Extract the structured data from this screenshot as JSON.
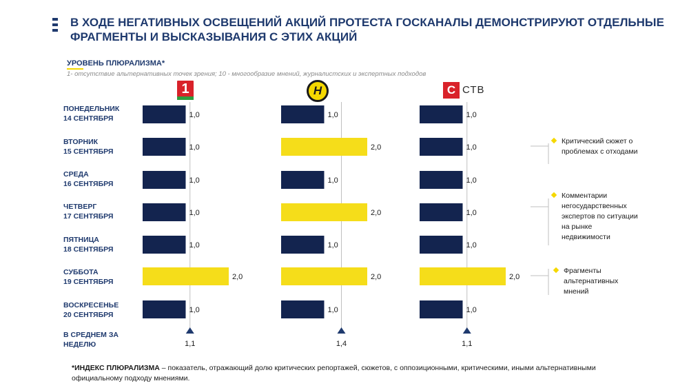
{
  "header": {
    "title": "В ХОДЕ НЕГАТИВНЫХ ОСВЕЩЕНИЙ АКЦИЙ ПРОТЕСТА ГОСКАНАЛЫ ДЕМОНСТРИРУЮТ ОТДЕЛЬНЫЕ ФРАГМЕНТЫ И ВЫСКАЗЫВАНИЯ С ЭТИХ АКЦИЙ"
  },
  "legend": {
    "title": "УРОВЕНЬ ПЛЮРАЛИЗМА*",
    "description": "1- отсутствие альтернативных точек зрения; 10 - многообразие мнений, журналистских и экспертных подходов"
  },
  "channels": {
    "ch1": {
      "logo_text": "1",
      "logo_icon": "belarus-1-logo"
    },
    "ont": {
      "logo_text": "Н",
      "logo_icon": "ont-logo"
    },
    "ctv": {
      "logo_c": "С",
      "logo_text": "СТВ",
      "logo_icon": "ctv-logo"
    }
  },
  "rows": [
    {
      "line1": "ПОНЕДЕЛЬНИК",
      "line2": "14 СЕНТЯБРЯ"
    },
    {
      "line1": "ВТОРНИК",
      "line2": "15 СЕНТЯБРЯ"
    },
    {
      "line1": "СРЕДА",
      "line2": "16 СЕНТЯБРЯ"
    },
    {
      "line1": "ЧЕТВЕРГ",
      "line2": "17 СЕНТЯБРЯ"
    },
    {
      "line1": "ПЯТНИЦА",
      "line2": "18 СЕНТЯБРЯ"
    },
    {
      "line1": "СУББОТА",
      "line2": "19 СЕНТЯБРЯ"
    },
    {
      "line1": "ВОСКРЕСЕНЬЕ",
      "line2": "20 СЕНТЯБРЯ"
    }
  ],
  "average": {
    "line1": "В СРЕДНЕМ ЗА",
    "line2": "НЕДЕЛЮ"
  },
  "chart_data": {
    "type": "bar",
    "orientation": "horizontal",
    "categories": [
      "ПОНЕДЕЛЬНИК 14 СЕНТЯБРЯ",
      "ВТОРНИК 15 СЕНТЯБРЯ",
      "СРЕДА 16 СЕНТЯБРЯ",
      "ЧЕТВЕРГ 17 СЕНТЯБРЯ",
      "ПЯТНИЦА 18 СЕНТЯБРЯ",
      "СУББОТА 19 СЕНТЯБРЯ",
      "ВОСКРЕСЕНЬЕ 20 СЕНТЯБРЯ"
    ],
    "series": [
      {
        "key": "ch1",
        "values": [
          1.0,
          1.0,
          1.0,
          1.0,
          1.0,
          2.0,
          1.0
        ],
        "labels": [
          "1,0",
          "1,0",
          "1,0",
          "1,0",
          "1,0",
          "2,0",
          "1,0"
        ],
        "average": 1.1,
        "average_label": "1,1"
      },
      {
        "key": "ont",
        "values": [
          1.0,
          2.0,
          1.0,
          2.0,
          1.0,
          2.0,
          1.0
        ],
        "labels": [
          "1,0",
          "2,0",
          "1,0",
          "2,0",
          "1,0",
          "2,0",
          "1,0"
        ],
        "average": 1.4,
        "average_label": "1,4"
      },
      {
        "key": "ctv",
        "values": [
          1.0,
          1.0,
          1.0,
          1.0,
          1.0,
          2.0,
          1.0
        ],
        "labels": [
          "1,0",
          "1,0",
          "1,0",
          "1,0",
          "1,0",
          "2,0",
          "1,0"
        ],
        "average": 1.1,
        "average_label": "1,1"
      }
    ],
    "colors": {
      "normal": "#13244f",
      "highlight": "#f5dd1a",
      "marker": "#1f3a6e",
      "ref_line": "#bfbfbf"
    }
  },
  "notes": [
    {
      "text": "Критический сюжет о проблемах с отходами"
    },
    {
      "text": "Комментарии негосударственных экспертов по ситуации на рынке недвижимости"
    },
    {
      "text": "Фрагменты альтернативных мнений"
    }
  ],
  "footer": {
    "term": "*ИНДЕКС ПЛЮРАЛИЗМА",
    "definition": " – показатель, отражающий долю критических репортажей, сюжетов, с оппозиционными, критическими, иными альтернативными официальному подходу мнениями."
  }
}
